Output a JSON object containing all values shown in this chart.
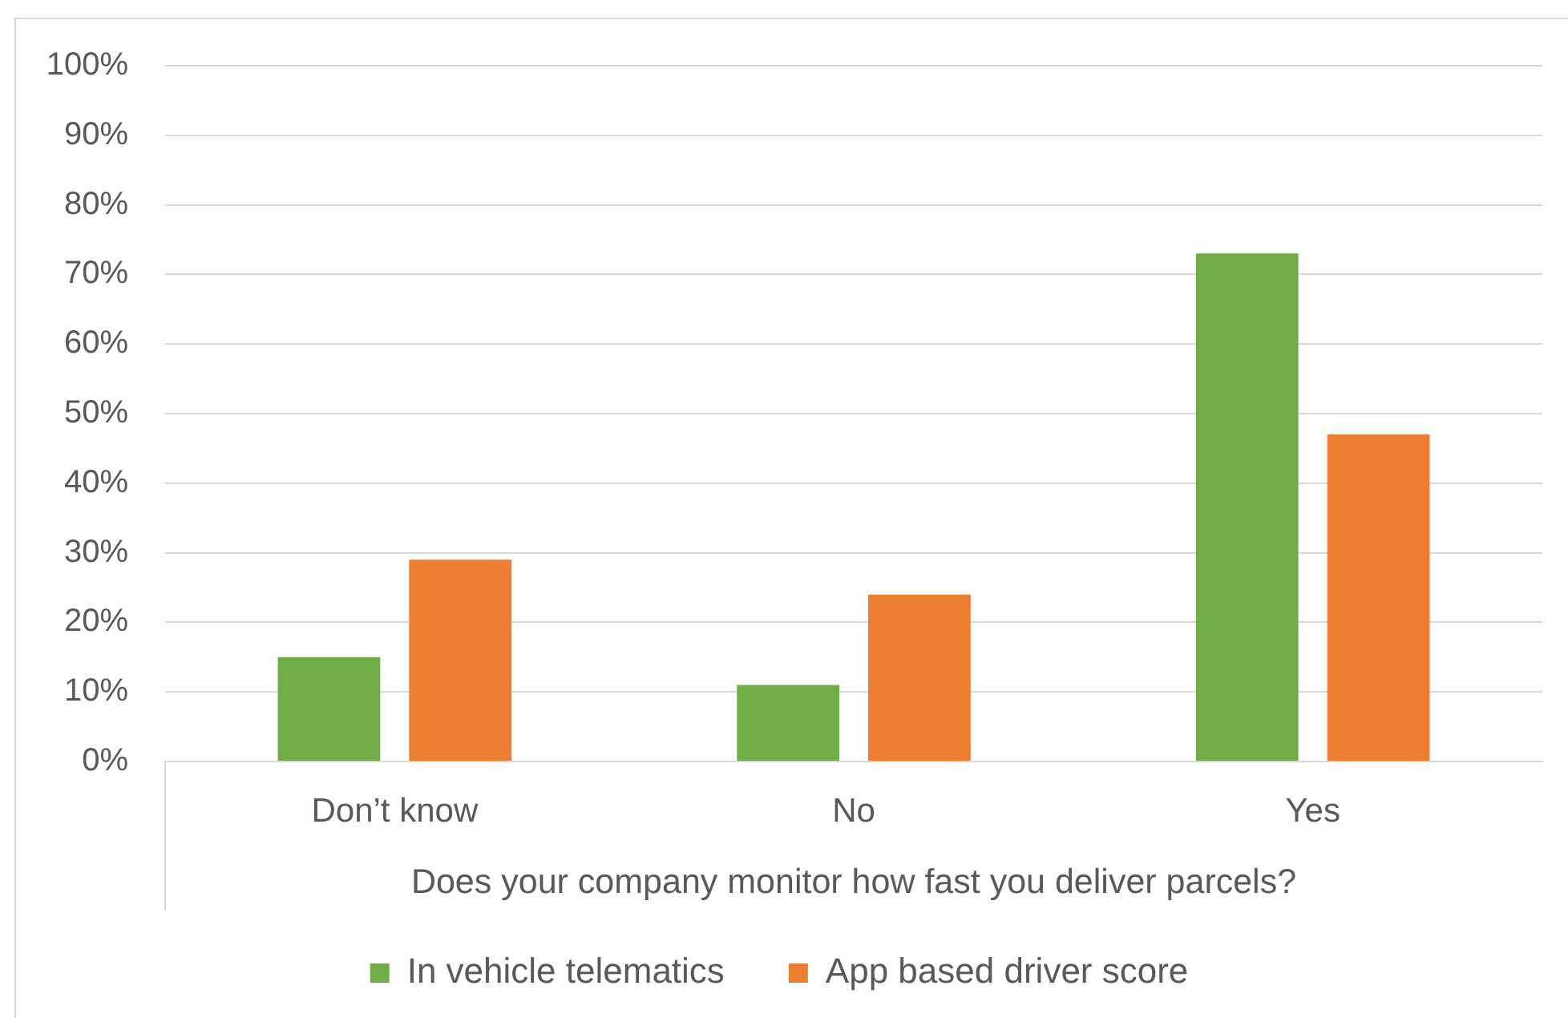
{
  "chart_data": {
    "type": "bar",
    "categories": [
      "Don’t know",
      "No",
      "Yes"
    ],
    "xlabel": "Does your company monitor how fast you deliver parcels?",
    "series": [
      {
        "name": "In vehicle telematics",
        "color": "#70ad47",
        "values": [
          15,
          11,
          73
        ]
      },
      {
        "name": "App based driver score",
        "color": "#ed7d31",
        "values": [
          29,
          24,
          47
        ]
      }
    ],
    "ylim": [
      0,
      100
    ],
    "yticks": [
      {
        "value": 0,
        "label": "0%"
      },
      {
        "value": 10,
        "label": "10%"
      },
      {
        "value": 20,
        "label": "20%"
      },
      {
        "value": 30,
        "label": "30%"
      },
      {
        "value": 40,
        "label": "40%"
      },
      {
        "value": 50,
        "label": "50%"
      },
      {
        "value": 60,
        "label": "60%"
      },
      {
        "value": 70,
        "label": "70%"
      },
      {
        "value": 80,
        "label": "80%"
      },
      {
        "value": 90,
        "label": "90%"
      },
      {
        "value": 100,
        "label": "100%"
      }
    ],
    "grid": "y",
    "legend": "bottom"
  }
}
